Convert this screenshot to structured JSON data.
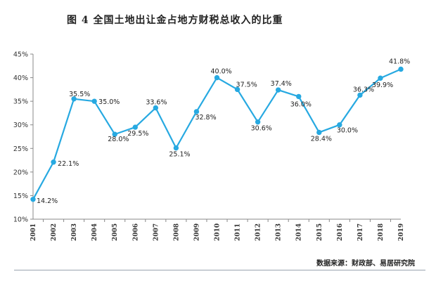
{
  "title": "图 4   全国土地出让金占地方财税总收入的比重",
  "source": "数据来源：财政部、易居研究院",
  "colors": {
    "line": "#27a9e1",
    "axis": "#888888",
    "text": "#222222"
  },
  "chart_data": {
    "type": "line",
    "title": "图 4   全国土地出让金占地方财税总收入的比重",
    "xlabel": "",
    "ylabel": "",
    "categories": [
      "2001",
      "2002",
      "2003",
      "2004",
      "2005",
      "2006",
      "2007",
      "2008",
      "2009",
      "2010",
      "2011",
      "2012",
      "2013",
      "2014",
      "2015",
      "2016",
      "2017",
      "2018",
      "2019"
    ],
    "series": [
      {
        "values": [
          14.2,
          22.1,
          35.5,
          35.0,
          28.0,
          29.5,
          33.6,
          25.1,
          32.8,
          40.0,
          37.5,
          30.6,
          37.4,
          36.0,
          28.4,
          30.0,
          36.3,
          39.9,
          41.8
        ]
      }
    ],
    "data_labels": [
      "14.2%",
      "22.1%",
      "35.5%",
      "35.0%",
      "28.0%",
      "29.5%",
      "33.6%",
      "25.1%",
      "32.8%",
      "40.0%",
      "37.5%",
      "30.6%",
      "37.4%",
      "36.0%",
      "28.4%",
      "30.0%",
      "36.3%",
      "39.9%",
      "41.8%"
    ],
    "ylim": [
      10,
      45
    ],
    "yticks": [
      10,
      15,
      20,
      25,
      30,
      35,
      40,
      45
    ],
    "ytick_labels": [
      "10%",
      "15%",
      "20%",
      "25%",
      "30%",
      "35%",
      "40%",
      "45%"
    ],
    "grid": false,
    "legend": "none"
  }
}
